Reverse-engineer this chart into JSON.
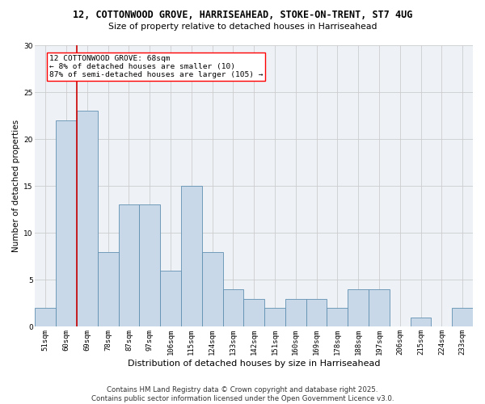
{
  "title_line1": "12, COTTONWOOD GROVE, HARRISEAHEAD, STOKE-ON-TRENT, ST7 4UG",
  "title_line2": "Size of property relative to detached houses in Harriseahead",
  "xlabel": "Distribution of detached houses by size in Harriseahead",
  "ylabel": "Number of detached properties",
  "categories": [
    "51sqm",
    "60sqm",
    "69sqm",
    "78sqm",
    "87sqm",
    "97sqm",
    "106sqm",
    "115sqm",
    "124sqm",
    "133sqm",
    "142sqm",
    "151sqm",
    "160sqm",
    "169sqm",
    "178sqm",
    "188sqm",
    "197sqm",
    "206sqm",
    "215sqm",
    "224sqm",
    "233sqm"
  ],
  "values": [
    2,
    22,
    23,
    8,
    13,
    13,
    6,
    15,
    8,
    4,
    3,
    2,
    3,
    3,
    2,
    4,
    4,
    0,
    1,
    0,
    2
  ],
  "bar_color": "#c8d8e8",
  "bar_edge_color": "#6090b0",
  "marker_color": "#cc0000",
  "marker_label_line1": "12 COTTONWOOD GROVE: 68sqm",
  "marker_label_line2": "← 8% of detached houses are smaller (10)",
  "marker_label_line3": "87% of semi-detached houses are larger (105) →",
  "ylim": [
    0,
    30
  ],
  "yticks": [
    0,
    5,
    10,
    15,
    20,
    25,
    30
  ],
  "grid_color": "#cccccc",
  "bg_color": "#eef2f7",
  "footer_line1": "Contains HM Land Registry data © Crown copyright and database right 2025.",
  "footer_line2": "Contains public sector information licensed under the Open Government Licence v3.0.",
  "title_fontsize": 8.5,
  "subtitle_fontsize": 7.8,
  "tick_fontsize": 6.5,
  "ylabel_fontsize": 7.5,
  "xlabel_fontsize": 8.0,
  "ann_fontsize": 6.8,
  "footer_fontsize": 6.2
}
